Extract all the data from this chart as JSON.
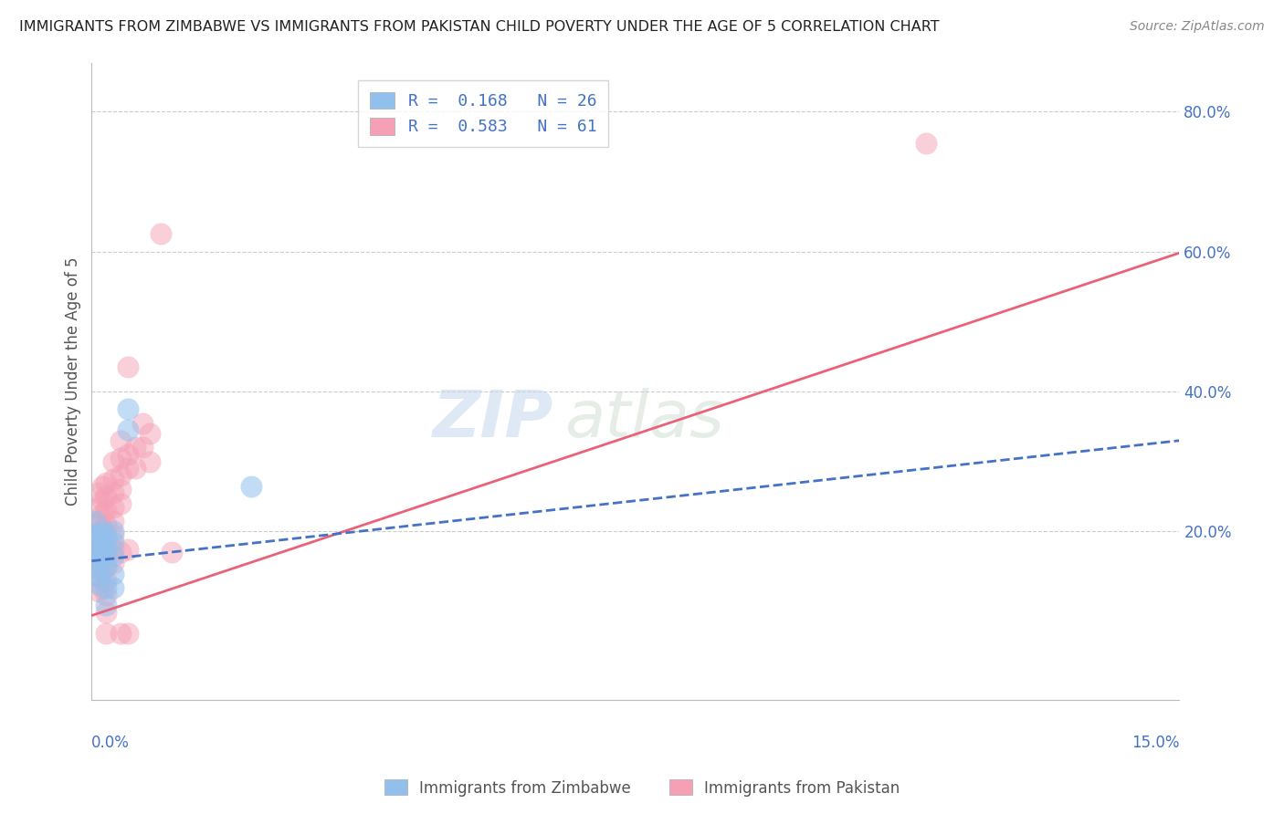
{
  "title": "IMMIGRANTS FROM ZIMBABWE VS IMMIGRANTS FROM PAKISTAN CHILD POVERTY UNDER THE AGE OF 5 CORRELATION CHART",
  "source": "Source: ZipAtlas.com",
  "ylabel": "Child Poverty Under the Age of 5",
  "right_yticklabels": [
    "20.0%",
    "40.0%",
    "60.0%",
    "80.0%"
  ],
  "right_ytick_vals": [
    0.2,
    0.4,
    0.6,
    0.8
  ],
  "xmin": 0.0,
  "xmax": 0.15,
  "ymin": -0.04,
  "ymax": 0.87,
  "watermark_zip": "ZIP",
  "watermark_atlas": "atlas",
  "legend_label_zimbabwe": "Immigrants from Zimbabwe",
  "legend_label_pakistan": "Immigrants from Pakistan",
  "legend_r_zim": "R =  0.168",
  "legend_n_zim": "N = 26",
  "legend_r_pak": "R =  0.583",
  "legend_n_pak": "N = 61",
  "zimbabwe_color": "#92c0ed",
  "pakistan_color": "#f5a0b5",
  "zimbabwe_line_color": "#4472c4",
  "pakistan_line_color": "#e8627a",
  "zimbabwe_scatter": [
    [
      0.0005,
      0.215
    ],
    [
      0.0005,
      0.195
    ],
    [
      0.001,
      0.195
    ],
    [
      0.001,
      0.175
    ],
    [
      0.001,
      0.165
    ],
    [
      0.001,
      0.155
    ],
    [
      0.001,
      0.145
    ],
    [
      0.001,
      0.135
    ],
    [
      0.001,
      0.125
    ],
    [
      0.0015,
      0.2
    ],
    [
      0.0015,
      0.185
    ],
    [
      0.0015,
      0.17
    ],
    [
      0.002,
      0.195
    ],
    [
      0.002,
      0.18
    ],
    [
      0.002,
      0.165
    ],
    [
      0.002,
      0.15
    ],
    [
      0.002,
      0.12
    ],
    [
      0.002,
      0.095
    ],
    [
      0.003,
      0.2
    ],
    [
      0.003,
      0.185
    ],
    [
      0.003,
      0.165
    ],
    [
      0.003,
      0.14
    ],
    [
      0.003,
      0.12
    ],
    [
      0.005,
      0.375
    ],
    [
      0.005,
      0.345
    ],
    [
      0.022,
      0.265
    ]
  ],
  "pakistan_scatter": [
    [
      0.0005,
      0.21
    ],
    [
      0.0005,
      0.19
    ],
    [
      0.0005,
      0.175
    ],
    [
      0.0005,
      0.16
    ],
    [
      0.001,
      0.255
    ],
    [
      0.001,
      0.235
    ],
    [
      0.001,
      0.215
    ],
    [
      0.001,
      0.195
    ],
    [
      0.001,
      0.18
    ],
    [
      0.001,
      0.165
    ],
    [
      0.001,
      0.15
    ],
    [
      0.001,
      0.135
    ],
    [
      0.001,
      0.115
    ],
    [
      0.0015,
      0.265
    ],
    [
      0.0015,
      0.245
    ],
    [
      0.0015,
      0.225
    ],
    [
      0.0015,
      0.205
    ],
    [
      0.0015,
      0.185
    ],
    [
      0.0015,
      0.165
    ],
    [
      0.0015,
      0.145
    ],
    [
      0.0015,
      0.12
    ],
    [
      0.002,
      0.27
    ],
    [
      0.002,
      0.25
    ],
    [
      0.002,
      0.23
    ],
    [
      0.002,
      0.21
    ],
    [
      0.002,
      0.19
    ],
    [
      0.002,
      0.17
    ],
    [
      0.002,
      0.15
    ],
    [
      0.002,
      0.13
    ],
    [
      0.002,
      0.11
    ],
    [
      0.002,
      0.085
    ],
    [
      0.002,
      0.055
    ],
    [
      0.003,
      0.3
    ],
    [
      0.003,
      0.275
    ],
    [
      0.003,
      0.255
    ],
    [
      0.003,
      0.235
    ],
    [
      0.003,
      0.215
    ],
    [
      0.003,
      0.195
    ],
    [
      0.003,
      0.175
    ],
    [
      0.003,
      0.155
    ],
    [
      0.004,
      0.33
    ],
    [
      0.004,
      0.305
    ],
    [
      0.004,
      0.28
    ],
    [
      0.004,
      0.26
    ],
    [
      0.004,
      0.24
    ],
    [
      0.004,
      0.17
    ],
    [
      0.004,
      0.055
    ],
    [
      0.005,
      0.435
    ],
    [
      0.005,
      0.31
    ],
    [
      0.005,
      0.29
    ],
    [
      0.005,
      0.175
    ],
    [
      0.005,
      0.055
    ],
    [
      0.006,
      0.32
    ],
    [
      0.006,
      0.29
    ],
    [
      0.007,
      0.355
    ],
    [
      0.007,
      0.32
    ],
    [
      0.008,
      0.34
    ],
    [
      0.008,
      0.3
    ],
    [
      0.0095,
      0.625
    ],
    [
      0.011,
      0.17
    ],
    [
      0.115,
      0.755
    ]
  ],
  "zimbabwe_trend_x": [
    0.0,
    0.15
  ],
  "zimbabwe_trend_y": [
    0.158,
    0.33
  ],
  "pakistan_trend_x": [
    0.0,
    0.15
  ],
  "pakistan_trend_y": [
    0.08,
    0.598
  ],
  "grid_color": "#cccccc",
  "grid_linestyle": "--",
  "background_color": "#ffffff",
  "title_fontsize": 11.5,
  "source_fontsize": 10,
  "axis_label_color": "#4472c4",
  "ylabel_color": "#555555",
  "legend_box_color": "#cccccc"
}
